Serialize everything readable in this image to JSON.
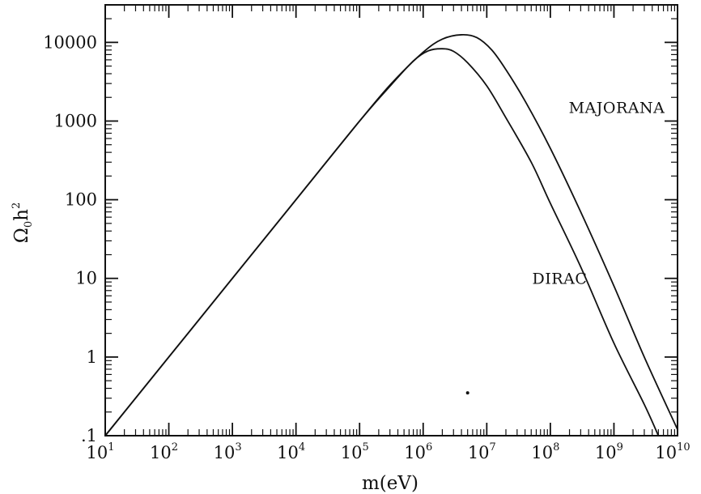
{
  "chart_data": {
    "type": "line",
    "title": "",
    "xlabel": "m(eV)",
    "ylabel": "Ω₀h²",
    "ylabel_parts": {
      "base": "Ω",
      "sub": "0",
      "h": "h",
      "sup": "2"
    },
    "x_scale": "log",
    "y_scale": "log",
    "xlim": [
      10,
      10000000000
    ],
    "ylim": [
      0.1,
      30000
    ],
    "grid": false,
    "x_ticks": [
      {
        "value": 10,
        "base": "10",
        "exp": "1"
      },
      {
        "value": 100,
        "base": "10",
        "exp": "2"
      },
      {
        "value": 1000,
        "base": "10",
        "exp": "3"
      },
      {
        "value": 10000,
        "base": "10",
        "exp": "4"
      },
      {
        "value": 100000,
        "base": "10",
        "exp": "5"
      },
      {
        "value": 1000000,
        "base": "10",
        "exp": "6"
      },
      {
        "value": 10000000,
        "base": "10",
        "exp": "7"
      },
      {
        "value": 100000000,
        "base": "10",
        "exp": "8"
      },
      {
        "value": 1000000000,
        "base": "10",
        "exp": "9"
      },
      {
        "value": 10000000000,
        "base": "10",
        "exp": "10"
      }
    ],
    "y_ticks": [
      {
        "value": 0.1,
        "label": ".1"
      },
      {
        "value": 1,
        "label": "1"
      },
      {
        "value": 10,
        "label": "10"
      },
      {
        "value": 100,
        "label": "100"
      },
      {
        "value": 1000,
        "label": "1000"
      },
      {
        "value": 10000,
        "label": "10000"
      }
    ],
    "series": [
      {
        "name": "MAJORANA",
        "color": "#111111",
        "points": [
          [
            10,
            0.1
          ],
          [
            100,
            1.0
          ],
          [
            1000,
            10
          ],
          [
            10000,
            100
          ],
          [
            100000,
            1000
          ],
          [
            316228,
            3000
          ],
          [
            1000000,
            7500
          ],
          [
            2000000,
            11000
          ],
          [
            4000000,
            12500
          ],
          [
            7000000,
            11500
          ],
          [
            12000000,
            8000
          ],
          [
            20000000,
            4500
          ],
          [
            40000000,
            1800
          ],
          [
            100000000,
            450
          ],
          [
            300000000,
            70
          ],
          [
            1000000000,
            8
          ],
          [
            3000000000,
            1.0
          ],
          [
            10000000000,
            0.12
          ]
        ]
      },
      {
        "name": "DIRAC",
        "color": "#111111",
        "points": [
          [
            10,
            0.1
          ],
          [
            100,
            1.0
          ],
          [
            1000,
            10
          ],
          [
            10000,
            100
          ],
          [
            100000,
            1000
          ],
          [
            316228,
            2900
          ],
          [
            700000,
            5800
          ],
          [
            1200000,
            7800
          ],
          [
            2000000,
            8300
          ],
          [
            3000000,
            7700
          ],
          [
            5000000,
            5500
          ],
          [
            10000000,
            2800
          ],
          [
            20000000,
            1100
          ],
          [
            50000000,
            300
          ],
          [
            100000000,
            90
          ],
          [
            300000000,
            14
          ],
          [
            1000000000,
            1.5
          ],
          [
            3000000000,
            0.25
          ],
          [
            5000000000,
            0.1
          ]
        ]
      }
    ],
    "annotations": [
      {
        "text": "MAJORANA",
        "x": 5000000000,
        "y": 1500
      },
      {
        "text": "DIRAC",
        "x": 300000000,
        "y": 10
      }
    ]
  }
}
